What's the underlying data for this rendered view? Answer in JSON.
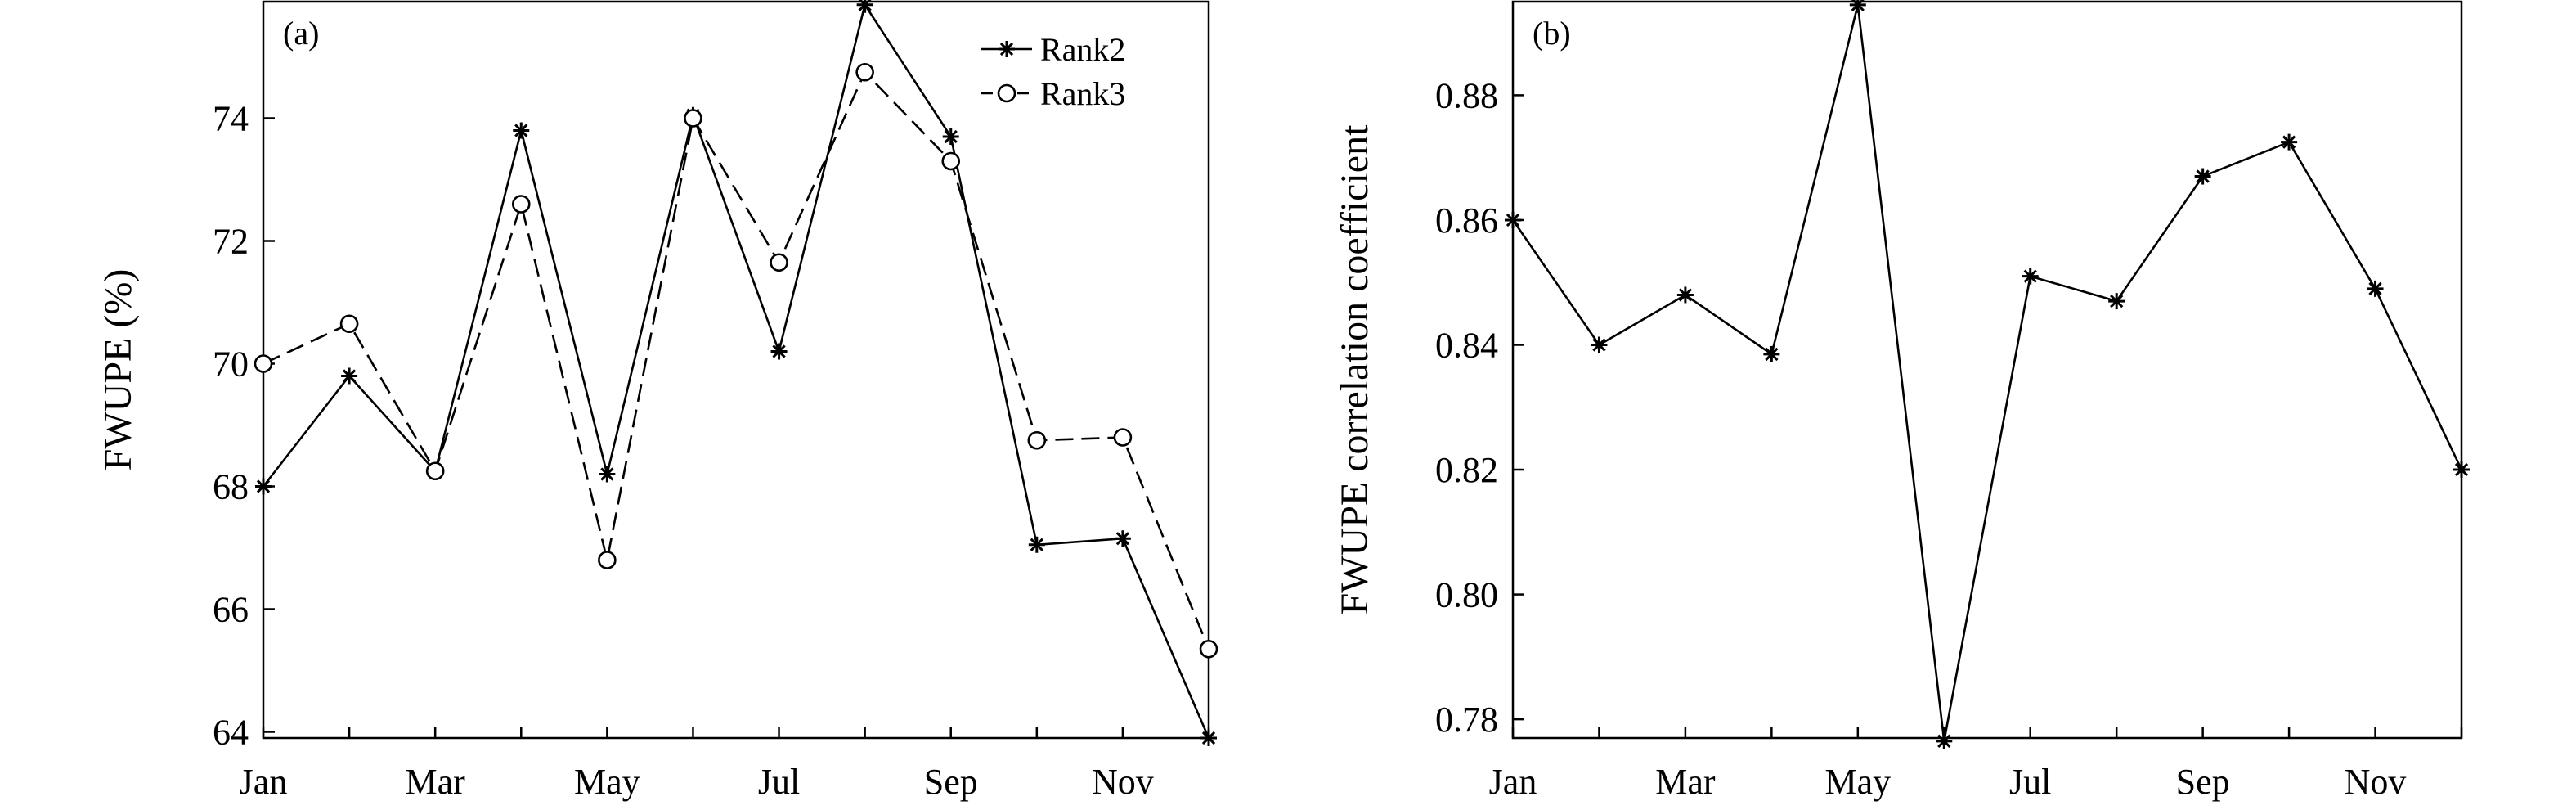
{
  "chart_data": [
    {
      "type": "line",
      "panel_label": "(a)",
      "xlabel": "",
      "ylabel": "FWUPE (%)",
      "x": [
        1,
        2,
        3,
        4,
        5,
        6,
        7,
        8,
        9,
        10,
        11,
        12
      ],
      "x_tick_values": [
        1,
        3,
        5,
        7,
        9,
        11
      ],
      "x_tick_labels": [
        "Jan",
        "Mar",
        "May",
        "Jul",
        "Sep",
        "Nov"
      ],
      "xlim": [
        1,
        12
      ],
      "ylim": [
        63.9,
        75.9
      ],
      "y_ticks": [
        64,
        66,
        68,
        70,
        72,
        74
      ],
      "grid": false,
      "legend": "top-right",
      "series": [
        {
          "name": "Rank2",
          "marker": "asterisk",
          "line_style": "solid",
          "color": "#000000",
          "values": [
            68.0,
            69.8,
            68.25,
            73.8,
            68.2,
            74.05,
            70.2,
            75.85,
            73.7,
            67.05,
            67.15,
            63.9
          ]
        },
        {
          "name": "Rank3",
          "marker": "circle",
          "line_style": "dashed",
          "color": "#000000",
          "values": [
            70.0,
            70.65,
            68.25,
            72.6,
            66.8,
            74.0,
            71.65,
            74.75,
            73.3,
            68.75,
            68.8,
            65.35
          ]
        }
      ]
    },
    {
      "type": "line",
      "panel_label": "(b)",
      "xlabel": "",
      "ylabel": "FWUPE correlation coefficient",
      "x": [
        1,
        2,
        3,
        4,
        5,
        6,
        7,
        8,
        9,
        10,
        11,
        12
      ],
      "x_tick_values": [
        1,
        3,
        5,
        7,
        9,
        11
      ],
      "x_tick_labels": [
        "Jan",
        "Mar",
        "May",
        "Jul",
        "Sep",
        "Nov"
      ],
      "xlim": [
        1,
        12
      ],
      "ylim": [
        0.777,
        0.895
      ],
      "y_ticks": [
        0.78,
        0.8,
        0.82,
        0.84,
        0.86,
        0.88
      ],
      "y_tick_labels": [
        "0.78",
        "0.80",
        "0.82",
        "0.84",
        "0.86",
        "0.88"
      ],
      "grid": false,
      "legend": "none",
      "series": [
        {
          "marker": "asterisk",
          "line_style": "solid",
          "color": "#000000",
          "values": [
            0.86,
            0.84,
            0.848,
            0.8385,
            0.8945,
            0.7765,
            0.851,
            0.847,
            0.867,
            0.8725,
            0.849,
            0.82
          ]
        }
      ]
    }
  ]
}
